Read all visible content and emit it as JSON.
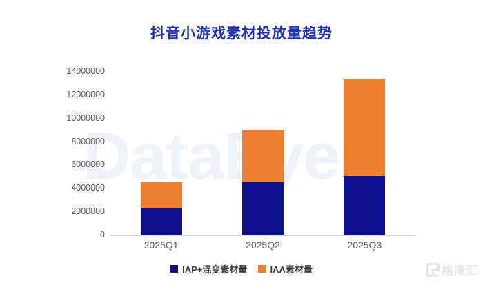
{
  "title": "抖音小游戏素材投放量趋势",
  "colors": {
    "title": "#1e32b0",
    "axis_text": "#595959",
    "axis_line": "#d9d9d9",
    "legend_text": "#3c3c3c",
    "background_watermark": "rgba(150,175,220,0.16)",
    "series_iap_blue": "#0e118e",
    "series_iaa_orange": "#ee7f31"
  },
  "chart_data": {
    "type": "bar",
    "stacked": true,
    "title": "抖音小游戏素材投放量趋势",
    "categories": [
      "2025Q1",
      "2025Q2",
      "2025Q3"
    ],
    "series": [
      {
        "name": "IAP+混变素材量",
        "color": "#0e118e",
        "values": [
          2300000,
          4500000,
          5000000
        ]
      },
      {
        "name": "IAA素材量",
        "color": "#ee7f31",
        "values": [
          2200000,
          4400000,
          8300000
        ]
      }
    ],
    "xlabel": "",
    "ylabel": "",
    "ylim": [
      0,
      14000000
    ],
    "yticks": [
      0,
      2000000,
      4000000,
      6000000,
      8000000,
      10000000,
      12000000,
      14000000
    ],
    "grid": false,
    "legend_position": "bottom"
  },
  "watermarks": {
    "background_text": "DataEye",
    "bottom_right_text": "格隆汇"
  }
}
